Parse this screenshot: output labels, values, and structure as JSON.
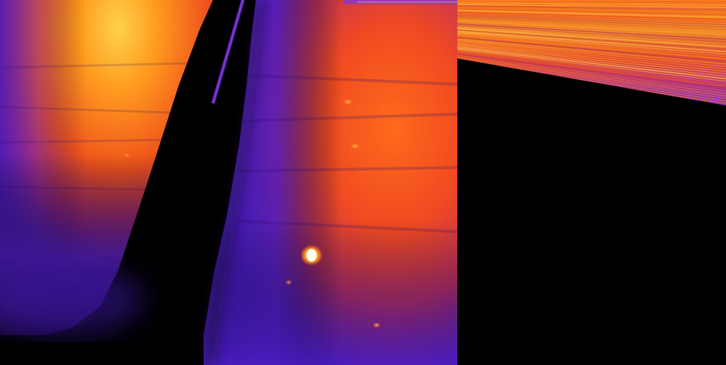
{
  "scene": {
    "description_hidden": "",
    "palette": {
      "background": "#000000",
      "cold": "#3a1a9a",
      "cool": "#5a22c8",
      "mid": "#d0303a",
      "warm": "#f05a18",
      "hot": "#ffb020",
      "hottest": "#ffffd0"
    },
    "icons": {
      "thermal_image": "thermal-camera-view",
      "streak_panel": "horizontal-streak-artifact"
    }
  }
}
